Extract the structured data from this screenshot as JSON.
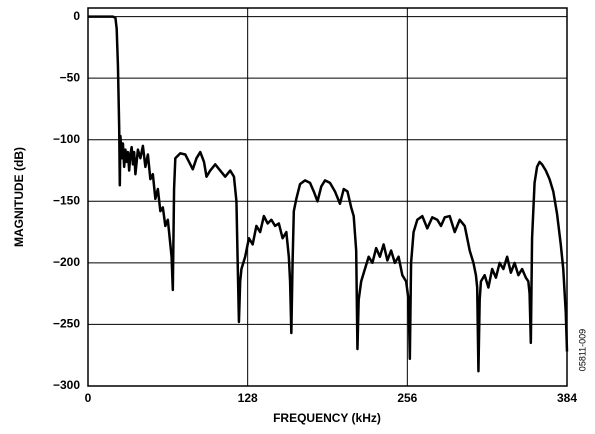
{
  "chart_data": {
    "type": "line",
    "xlabel": "FREQUENCY (kHz)",
    "ylabel": "MAGNITUDE (dB)",
    "annotation": "05811-009",
    "xlim": [
      0,
      384
    ],
    "xticks": [
      0,
      128,
      256,
      384
    ],
    "ylim": [
      -300,
      7
    ],
    "yticks": [
      {
        "value": -300,
        "label": "−300"
      },
      {
        "value": -250,
        "label": "−250"
      },
      {
        "value": -200,
        "label": "−200"
      },
      {
        "value": -150,
        "label": "−150"
      },
      {
        "value": -100,
        "label": "−100"
      },
      {
        "value": -50,
        "label": "−50"
      },
      0
    ],
    "grid": true,
    "series": [
      {
        "color": "#000000",
        "x": [
          0,
          20,
          22,
          23,
          24,
          25,
          25.5,
          26,
          27,
          28,
          29,
          30,
          31,
          32,
          33,
          34,
          35,
          36,
          37,
          38,
          40,
          42,
          44,
          46,
          48,
          50,
          52,
          54,
          56,
          58,
          60,
          62,
          64,
          66,
          67,
          68,
          69,
          70,
          74,
          78,
          82,
          84,
          87,
          90,
          93,
          95,
          98,
          102,
          106,
          110,
          114,
          117,
          119,
          120,
          121,
          122,
          123,
          126,
          129,
          132,
          135,
          138,
          141,
          144,
          147,
          150,
          153,
          156,
          159,
          161,
          162,
          163,
          164,
          165,
          167,
          170,
          174,
          178,
          181,
          184,
          187,
          190,
          194,
          198,
          202,
          205,
          208,
          211,
          213,
          215,
          216,
          217,
          219,
          222,
          225,
          228,
          231,
          234,
          237,
          240,
          243,
          246,
          249,
          252,
          255,
          257,
          258,
          259,
          261,
          264,
          268,
          272,
          276,
          280,
          283,
          286,
          290,
          294,
          298,
          302,
          306,
          309,
          311,
          312,
          313,
          314,
          315,
          318,
          321,
          324,
          327,
          330,
          333,
          336,
          339,
          342,
          345,
          348,
          351,
          353,
          354,
          355,
          356,
          358,
          360,
          362,
          364,
          367,
          370,
          373,
          376,
          379,
          381,
          383,
          384
        ],
        "values": [
          0,
          0,
          -1,
          -10,
          -40,
          -90,
          -137,
          -97,
          -115,
          -103,
          -122,
          -108,
          -118,
          -110,
          -125,
          -112,
          -106,
          -120,
          -110,
          -128,
          -108,
          -115,
          -105,
          -122,
          -112,
          -132,
          -128,
          -148,
          -140,
          -158,
          -155,
          -170,
          -165,
          -185,
          -195,
          -222,
          -140,
          -115,
          -111,
          -112,
          -120,
          -124,
          -115,
          -110,
          -118,
          -130,
          -125,
          -120,
          -125,
          -130,
          -125,
          -130,
          -150,
          -200,
          -248,
          -215,
          -205,
          -195,
          -180,
          -185,
          -170,
          -175,
          -162,
          -168,
          -165,
          -170,
          -168,
          -180,
          -175,
          -195,
          -215,
          -257,
          -200,
          -158,
          -148,
          -136,
          -133,
          -135,
          -142,
          -150,
          -138,
          -133,
          -135,
          -142,
          -152,
          -140,
          -142,
          -155,
          -162,
          -190,
          -270,
          -230,
          -215,
          -205,
          -195,
          -200,
          -188,
          -195,
          -185,
          -198,
          -190,
          -200,
          -195,
          -210,
          -215,
          -230,
          -278,
          -200,
          -175,
          -165,
          -162,
          -172,
          -163,
          -165,
          -170,
          -163,
          -162,
          -175,
          -165,
          -170,
          -190,
          -200,
          -210,
          -220,
          -288,
          -230,
          -215,
          -210,
          -220,
          -205,
          -212,
          -200,
          -205,
          -195,
          -208,
          -200,
          -210,
          -205,
          -212,
          -215,
          -225,
          -265,
          -180,
          -135,
          -122,
          -118,
          -120,
          -125,
          -132,
          -142,
          -160,
          -185,
          -205,
          -240,
          -272
        ]
      }
    ]
  }
}
